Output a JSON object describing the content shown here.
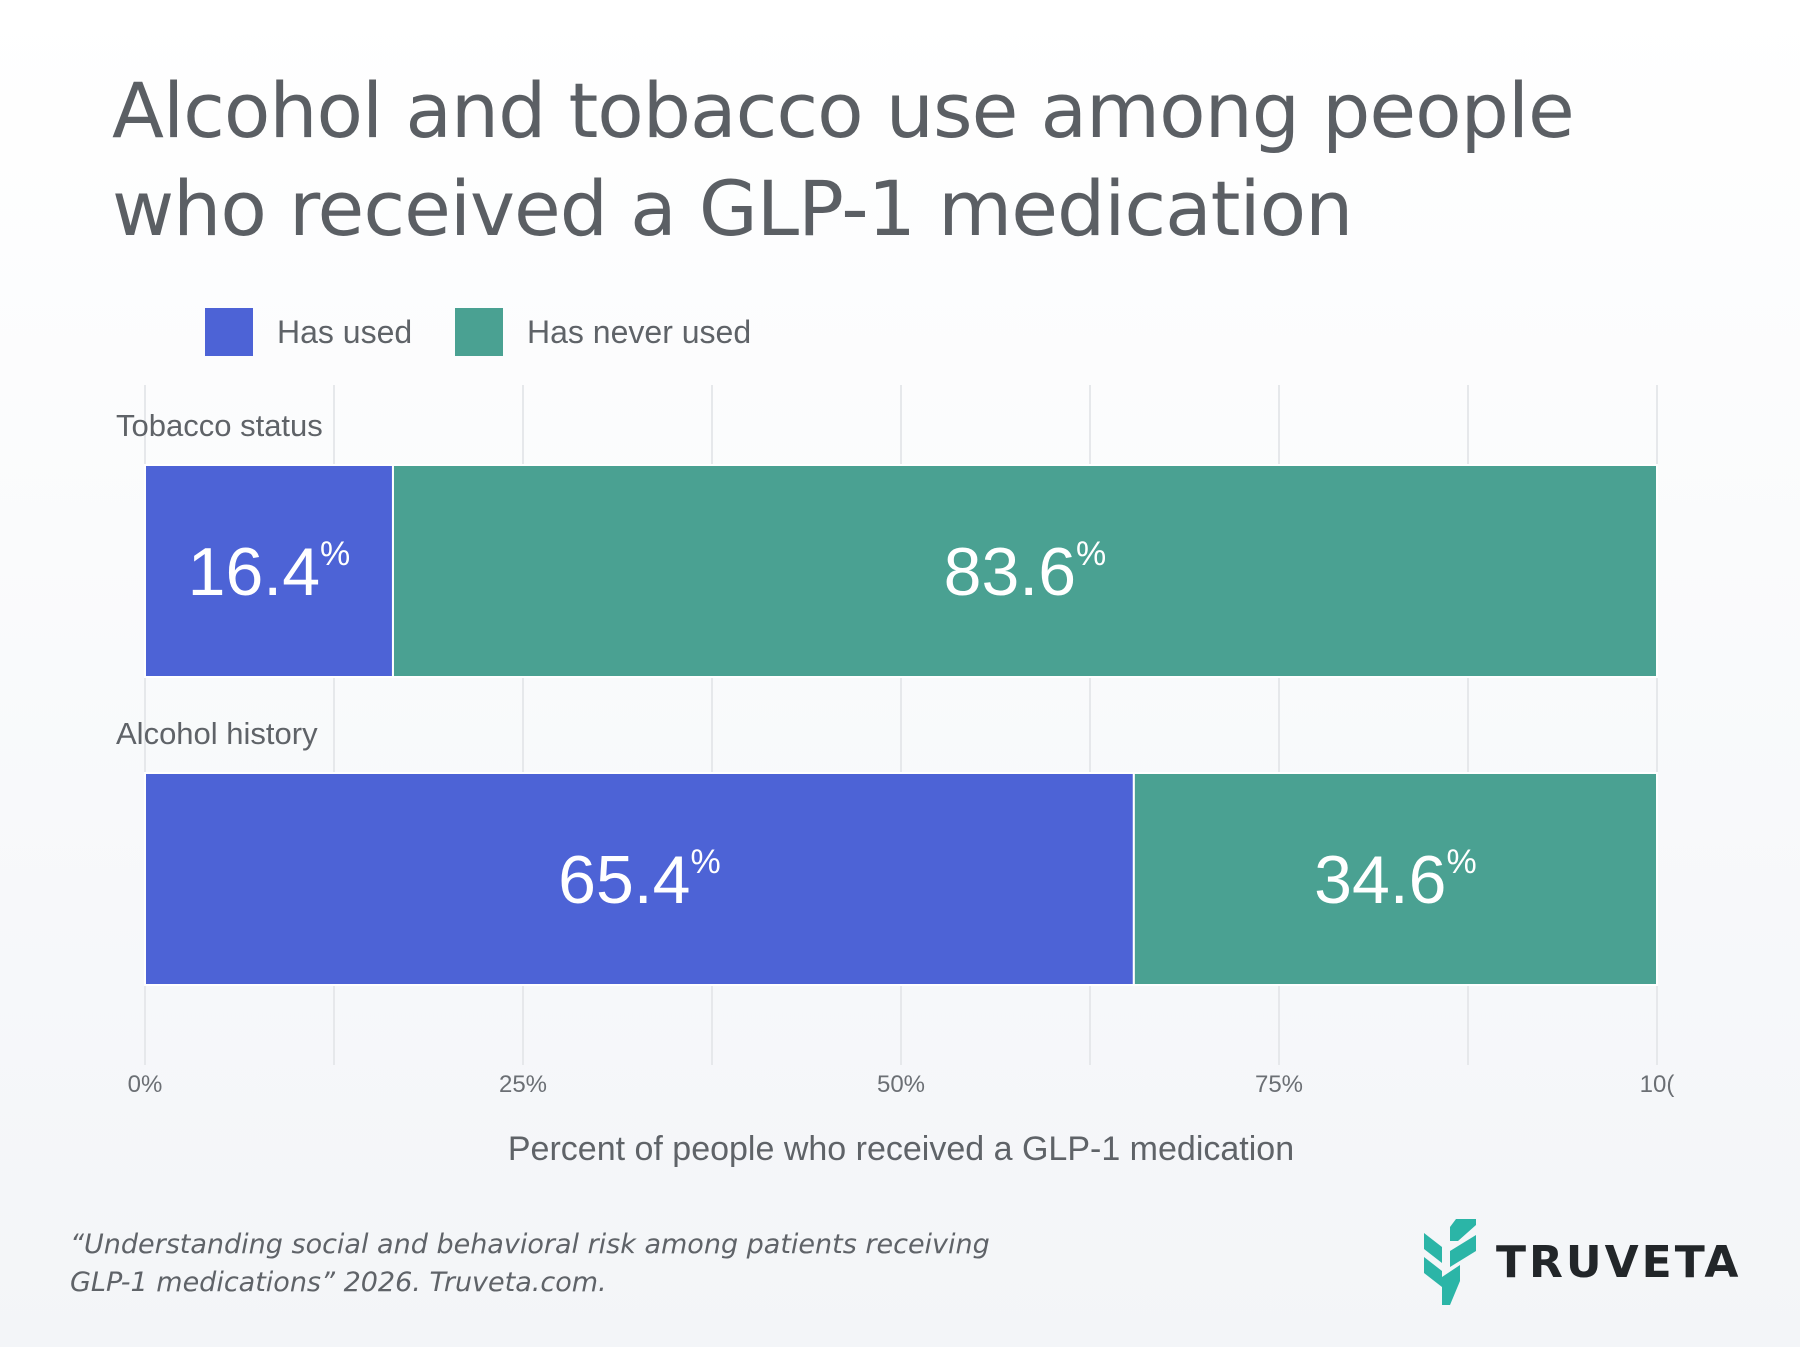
{
  "title": {
    "line1": "Alcohol and tobacco use among people",
    "line2": "who received a GLP-1 medication"
  },
  "legend": [
    {
      "label": "Has used",
      "color": "#4d63d6"
    },
    {
      "label": "Has never used",
      "color": "#4aa192"
    }
  ],
  "chart_data": {
    "type": "bar",
    "orientation": "horizontal",
    "stacked": true,
    "categories": [
      "Tobacco status",
      "Alcohol history"
    ],
    "series": [
      {
        "name": "Has used",
        "values": [
          16.4,
          65.4
        ],
        "labels": [
          "16.4",
          "65.4"
        ],
        "color": "#4d63d6"
      },
      {
        "name": "Has never used",
        "values": [
          83.6,
          34.6
        ],
        "labels": [
          "83.6",
          "34.6"
        ],
        "color": "#4aa192"
      }
    ],
    "value_suffix": "%",
    "xlim": [
      0,
      100
    ],
    "x_ticks": [
      "0%",
      "25%",
      "50%",
      "75%",
      "10("
    ],
    "xlabel": "Percent of people who received a GLP-1 medication",
    "grid": true,
    "legend_position": "top-left"
  },
  "source": {
    "line1": "“Understanding social and behavioral risk among patients receiving",
    "line2": "GLP-1 medications” 2026. Truveta.com."
  },
  "logo": {
    "text": "TRUVETA",
    "icon": "truveta-leaf-icon",
    "color": "#2bb5a7"
  }
}
